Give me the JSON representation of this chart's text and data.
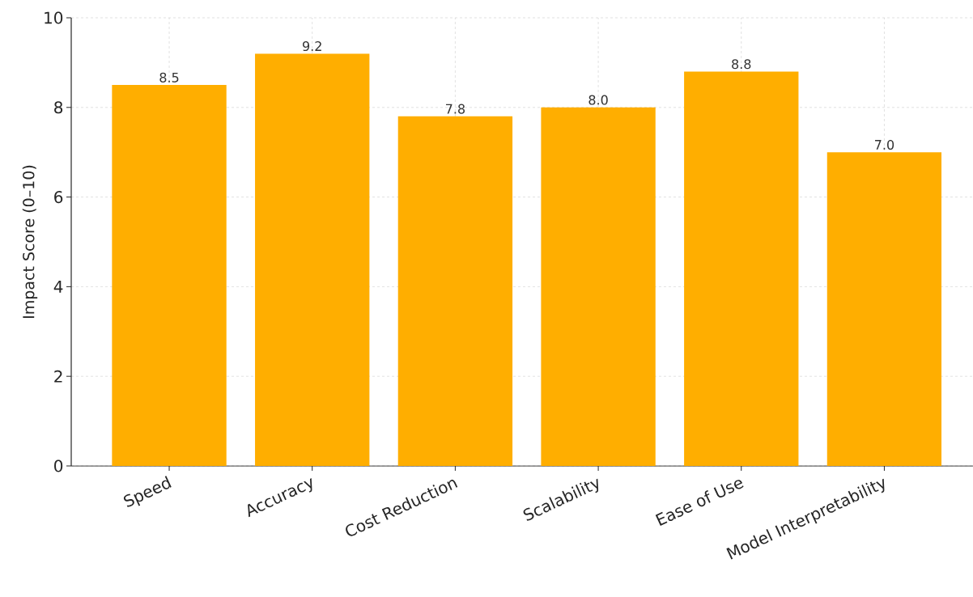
{
  "chart_data": {
    "type": "bar",
    "ylabel": "Impact Score (0–10)",
    "categories": [
      "Speed",
      "Accuracy",
      "Cost Reduction",
      "Scalability",
      "Ease of Use",
      "Model Interpretability"
    ],
    "values": [
      8.5,
      9.2,
      7.8,
      8.0,
      8.8,
      7.0
    ],
    "value_labels": [
      "8.5",
      "9.2",
      "7.8",
      "8.0",
      "8.8",
      "7.0"
    ],
    "color": "#ffae00",
    "ylim": [
      0,
      10
    ],
    "yticks": [
      0,
      2,
      4,
      6,
      8,
      10
    ],
    "grid": true
  }
}
